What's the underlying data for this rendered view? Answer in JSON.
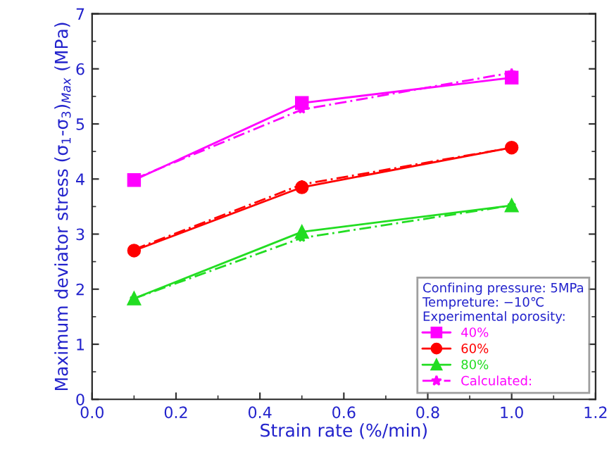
{
  "chart_data": {
    "type": "line",
    "xlabel": "Strain rate (%/min)",
    "ylabel": "Maximum deviator stress (σ$_{1}$-σ$_{3}$)$_{Max}$ (MPa)",
    "legend_title": "Confining pressure: 5MPa\nTempreture: −10℃\nExperimental porosity:",
    "x": [
      0.1,
      0.5,
      1.0
    ],
    "series": [
      {
        "name": "40%",
        "color": "#ff00ff",
        "values": [
          3.98,
          5.38,
          5.84
        ],
        "marker": "square",
        "line_style": "solid"
      },
      {
        "name": "60%",
        "color": "#ff0000",
        "values": [
          2.7,
          3.85,
          4.57
        ],
        "marker": "circle",
        "line_style": "solid"
      },
      {
        "name": "80%",
        "color": "#22dd22",
        "values": [
          1.83,
          3.04,
          3.52
        ],
        "marker": "triangle",
        "line_style": "solid"
      },
      {
        "name": "Calculated:",
        "color": "#ff00ff",
        "values": [
          4.0,
          5.26,
          5.93
        ],
        "marker": "star",
        "line_style": "dashed"
      },
      {
        "color": "#ff0000",
        "values": [
          2.72,
          3.9,
          4.57
        ],
        "marker": "star",
        "line_style": "dashed"
      },
      {
        "color": "#22dd22",
        "values": [
          1.83,
          2.93,
          3.52
        ],
        "marker": "star",
        "line_style": "dashed"
      }
    ],
    "xlim": [
      0.0,
      1.2
    ],
    "xticks": [
      {
        "value": 0,
        "label": "0.0"
      },
      0.2,
      0.4,
      0.6,
      0.8,
      {
        "value": 1,
        "label": "1.0"
      },
      1.2
    ],
    "ylim": [
      0,
      7
    ],
    "yticks": [
      0,
      1,
      2,
      3,
      4,
      5,
      6,
      7
    ],
    "grid": false,
    "legend": "bottom right"
  }
}
